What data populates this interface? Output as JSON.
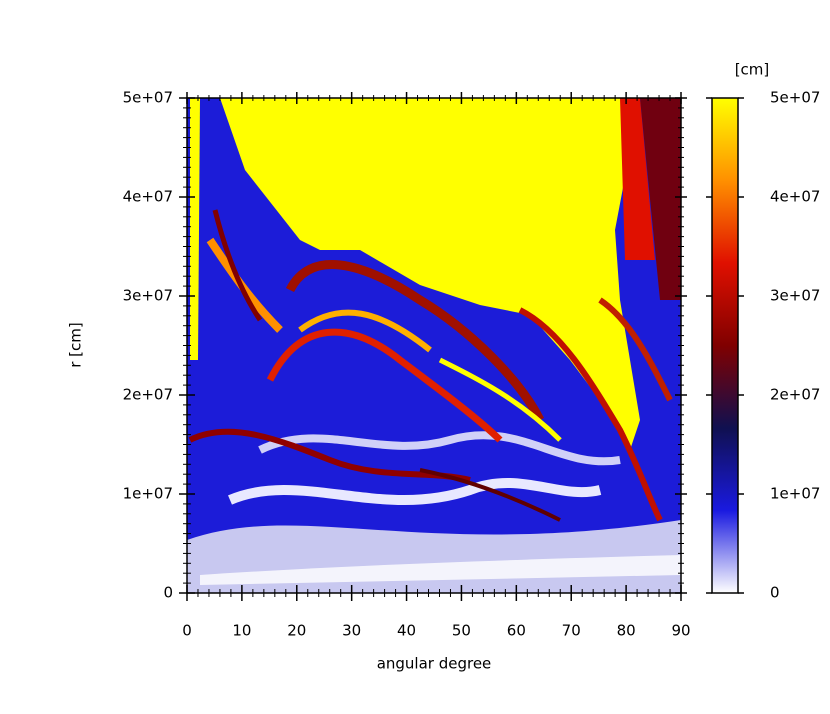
{
  "chart_data": {
    "type": "heatmap",
    "x_label": "angular degree",
    "y_label": "r [cm]",
    "xlim": [
      0,
      90
    ],
    "xticks": [
      0,
      10,
      20,
      30,
      40,
      50,
      60,
      70,
      80,
      90
    ],
    "ylim": [
      0,
      50000000
    ],
    "yticks": [
      0,
      {
        "value": 10000000,
        "label": "1e+07"
      },
      {
        "value": 20000000,
        "label": "2e+07"
      },
      {
        "value": 30000000,
        "label": "3e+07"
      },
      {
        "value": 40000000,
        "label": "4e+07"
      },
      {
        "value": 50000000,
        "label": "5e+07"
      }
    ],
    "colorbar": {
      "label": "[cm]",
      "lim": [
        0,
        50000000
      ],
      "ticks": [
        0,
        {
          "value": 10000000,
          "label": "1e+07"
        },
        {
          "value": 20000000,
          "label": "2e+07"
        },
        {
          "value": 30000000,
          "label": "3e+07"
        },
        {
          "value": 40000000,
          "label": "4e+07"
        },
        {
          "value": 50000000,
          "label": "5e+07"
        }
      ],
      "colormap": [
        "#ffffff",
        "#1a1ae0",
        "#101050",
        "#800000",
        "#e01000",
        "#ff9000",
        "#ffff00"
      ]
    }
  }
}
